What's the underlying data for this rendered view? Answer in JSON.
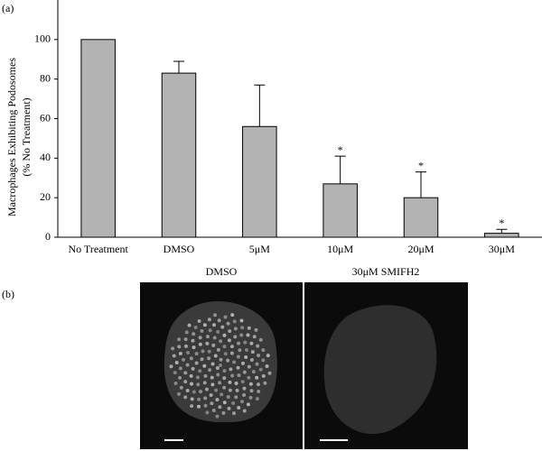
{
  "chart_data": {
    "type": "bar",
    "panel_label": "(a)",
    "y_label": [
      "Macrophages Exhibiting Podosomes",
      "(% No Treatment)"
    ],
    "categories": [
      "No Treatment",
      "DMSO",
      "5μM",
      "10μM",
      "20μM",
      "30μM"
    ],
    "values": [
      100,
      83,
      56,
      27,
      20,
      2
    ],
    "errors": [
      null,
      6,
      21,
      14,
      13,
      2
    ],
    "annotations": [
      null,
      null,
      null,
      "*",
      "*",
      "*"
    ],
    "color": "#b3b3b3",
    "ylim": [
      0,
      120
    ],
    "yticks": [
      0,
      20,
      40,
      60,
      80,
      100
    ],
    "grid": false
  },
  "image_panel": {
    "label": "(b)",
    "images": [
      {
        "title": "DMSO"
      },
      {
        "title": "30μM SMIFH2"
      }
    ]
  }
}
